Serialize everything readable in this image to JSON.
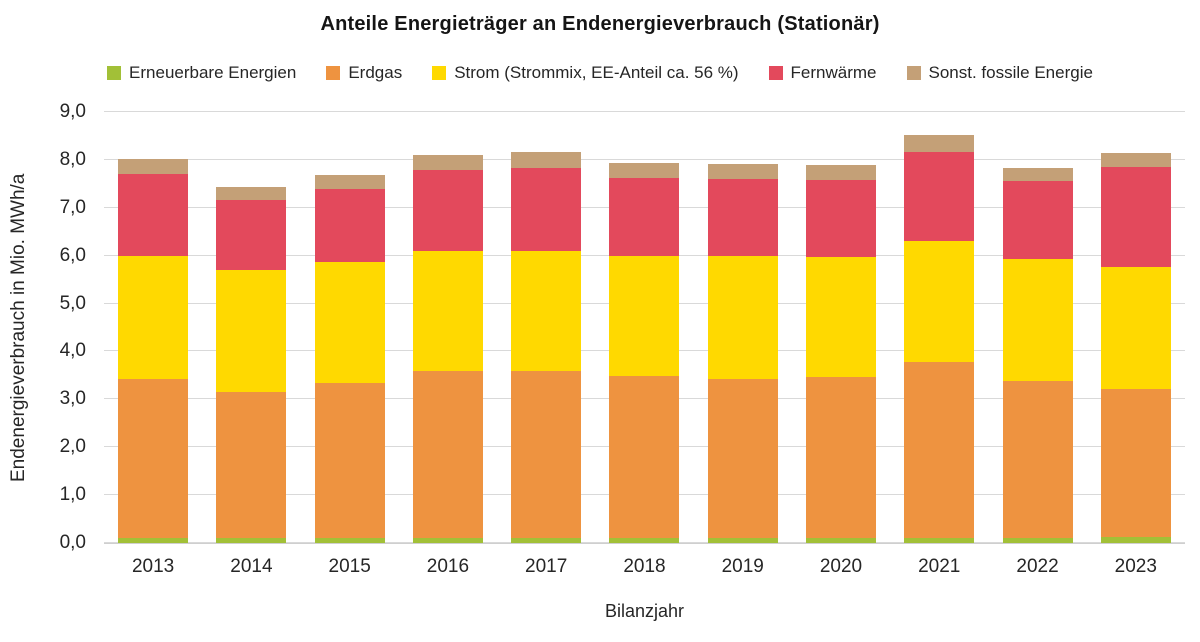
{
  "title": "Anteile Energieträger an Endenergieverbrauch (Stationär)",
  "chart_data": {
    "type": "bar",
    "stacked": true,
    "title": "Anteile Energieträger an Endenergieverbrauch (Stationär)",
    "xlabel": "Bilanzjahr",
    "ylabel": "Endenergieverbrauch in Mio. MWh/a",
    "ylim": [
      0,
      9
    ],
    "ytick_step": 1.0,
    "ytick_labels": [
      "0,0",
      "1,0",
      "2,0",
      "3,0",
      "4,0",
      "5,0",
      "6,0",
      "7,0",
      "8,0",
      "9,0"
    ],
    "grid": "horizontal-only",
    "gridline_color": "#d9d9d9",
    "legend_position": "top",
    "categories": [
      "2013",
      "2014",
      "2015",
      "2016",
      "2017",
      "2018",
      "2019",
      "2020",
      "2021",
      "2022",
      "2023"
    ],
    "series": [
      {
        "name": "Erneuerbare Energien",
        "color": "#a2c037",
        "values": [
          0.1,
          0.1,
          0.1,
          0.1,
          0.1,
          0.1,
          0.1,
          0.1,
          0.1,
          0.1,
          0.12
        ]
      },
      {
        "name": "Erdgas",
        "color": "#ee9340",
        "values": [
          3.32,
          3.05,
          3.25,
          3.49,
          3.5,
          3.38,
          3.33,
          3.37,
          3.68,
          3.28,
          3.1
        ]
      },
      {
        "name": "Strom (Strommix, EE-Anteil ca. 56 %)",
        "color": "#ffd900",
        "values": [
          2.58,
          2.55,
          2.51,
          2.51,
          2.5,
          2.52,
          2.57,
          2.5,
          2.52,
          2.56,
          2.55
        ]
      },
      {
        "name": "Fernwärme",
        "color": "#e3495c",
        "values": [
          1.7,
          1.46,
          1.53,
          1.7,
          1.73,
          1.63,
          1.61,
          1.62,
          1.87,
          1.61,
          2.09
        ]
      },
      {
        "name": "Sonst. fossile Energie",
        "color": "#c4a077",
        "values": [
          0.32,
          0.28,
          0.29,
          0.31,
          0.33,
          0.31,
          0.31,
          0.31,
          0.35,
          0.29,
          0.29
        ]
      }
    ],
    "totals": [
      8.02,
      7.44,
      7.68,
      8.11,
      8.16,
      7.94,
      7.92,
      7.9,
      8.52,
      7.84,
      8.15
    ]
  }
}
